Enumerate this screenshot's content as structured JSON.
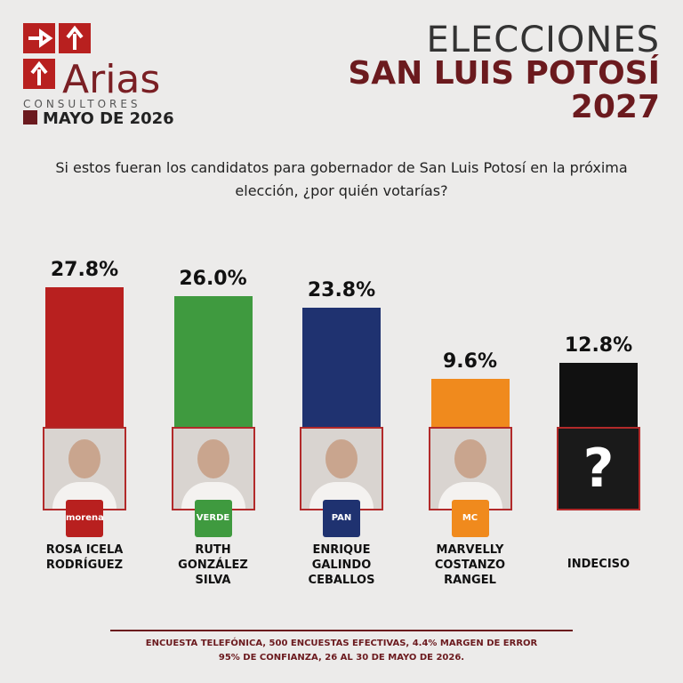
{
  "chart_data": {
    "type": "bar",
    "header": {
      "brand": "Arias",
      "brand_sub": "CONSULTORES",
      "date": "MAYO DE 2026",
      "title_1": "ELECCIONES",
      "title_2": "SAN LUIS POTOSÍ",
      "title_3": "2027"
    },
    "title": "Si estos fueran los candidatos para gobernador de San Luis Potosí en la próxima elección, ¿por quién votarías?",
    "categories": [
      "ROSA ICELA RODRÍGUEZ",
      "RUTH GONZÁLEZ SILVA",
      "ENRIQUE GALINDO CEBALLOS",
      "MARVELLY COSTANZO RANGEL",
      "INDECISO"
    ],
    "parties": [
      "morena",
      "VERDE",
      "PAN",
      "MC",
      null
    ],
    "undecided_mark": "?",
    "values": [
      27.8,
      26.0,
      23.8,
      9.6,
      12.8
    ],
    "value_labels": [
      "27.8%",
      "26.0%",
      "23.8%",
      "9.6%",
      "12.8%"
    ],
    "colors": [
      "#b8201f",
      "#3f9a3f",
      "#1f3270",
      "#f08a1d",
      "#111111"
    ],
    "footer": [
      "ENCUESTA TELEFÓNICA, 500 ENCUESTAS EFECTIVAS, 4.4%  MARGEN DE ERROR",
      "95% DE CONFIANZA, 26 AL 30 DE MAYO DE 2026."
    ]
  }
}
